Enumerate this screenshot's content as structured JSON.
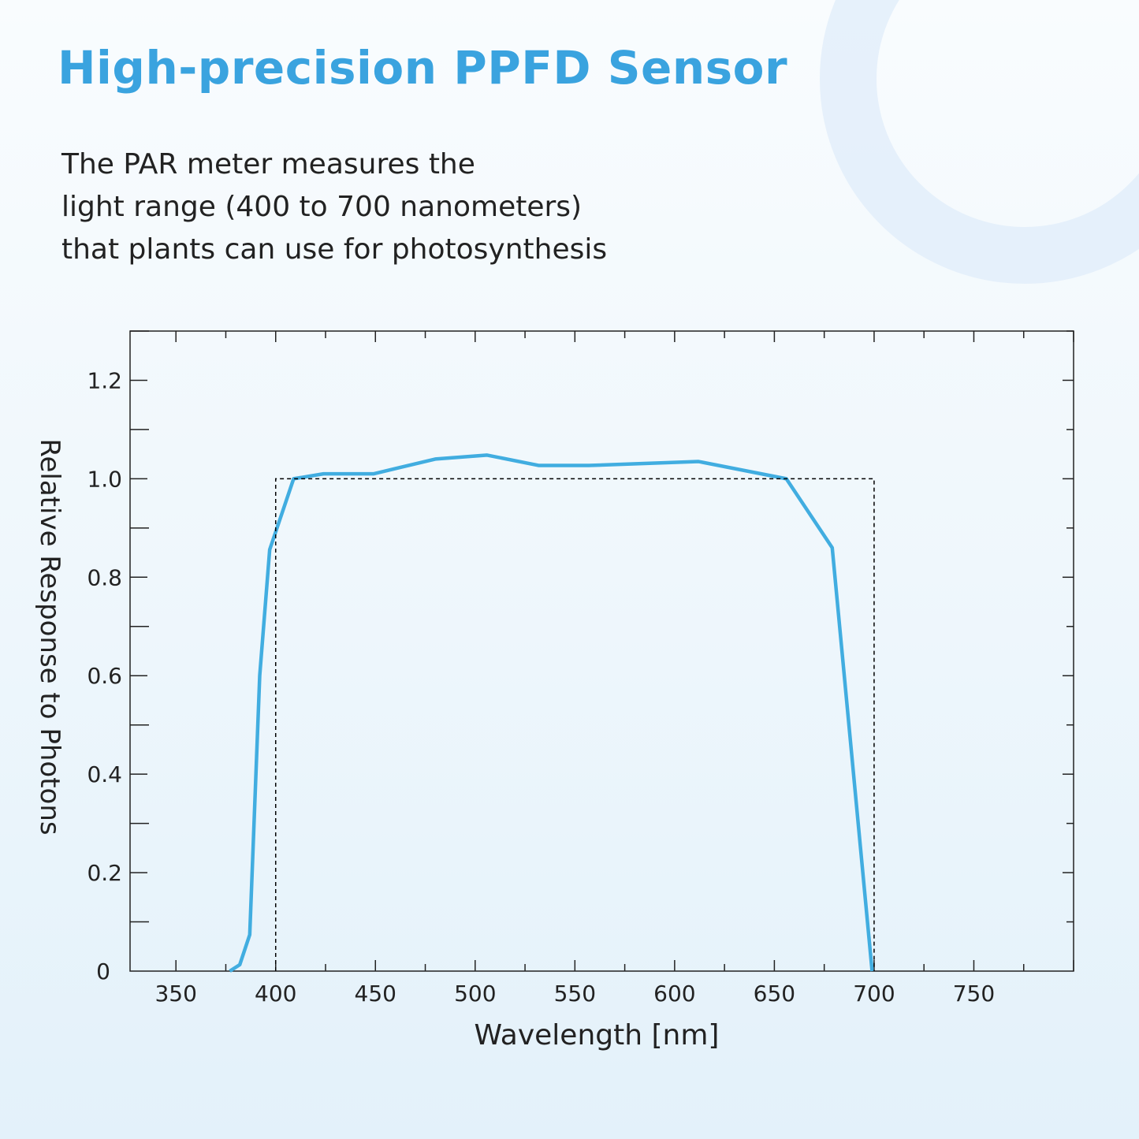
{
  "title": "High-precision PPFD Sensor",
  "subtitle_lines": [
    "The PAR meter measures the",
    "light range (400 to 700 nanometers)",
    "that plants can use for photosynthesis"
  ],
  "colors": {
    "title": "#3aa3df",
    "curve": "#41ade0",
    "reference": "#000000"
  },
  "chart_data": {
    "type": "line",
    "xlabel": "Wavelength [nm]",
    "ylabel": "Relative Response to Photons",
    "xlim": [
      327,
      800
    ],
    "ylim": [
      0,
      1.3
    ],
    "xticks": [
      350,
      400,
      450,
      500,
      550,
      600,
      650,
      700,
      750
    ],
    "xtick_labels": [
      "350",
      "400",
      "450",
      "500",
      "550",
      "600",
      "650",
      "700",
      "750"
    ],
    "yticks": [
      0,
      0.2,
      0.4,
      0.6,
      0.8,
      1.0,
      1.2
    ],
    "ytick_labels": [
      "0",
      "0.2",
      "0.4",
      "0.6",
      "0.8",
      "1.0",
      "1.2"
    ],
    "grid": false,
    "series": [
      {
        "style": "solid",
        "x": [
          377,
          382,
          387,
          392,
          397,
          409,
          424,
          449,
          480,
          506,
          532,
          557,
          612,
          656,
          679,
          699
        ],
        "y": [
          0,
          0.013,
          0.074,
          0.6,
          0.856,
          1.0,
          1.01,
          1.01,
          1.04,
          1.048,
          1.027,
          1.027,
          1.035,
          1.0,
          0.86,
          0
        ]
      },
      {
        "style": "dashed",
        "x": [
          400,
          400,
          700,
          700
        ],
        "y": [
          0,
          1.0,
          1.0,
          0
        ]
      }
    ]
  }
}
